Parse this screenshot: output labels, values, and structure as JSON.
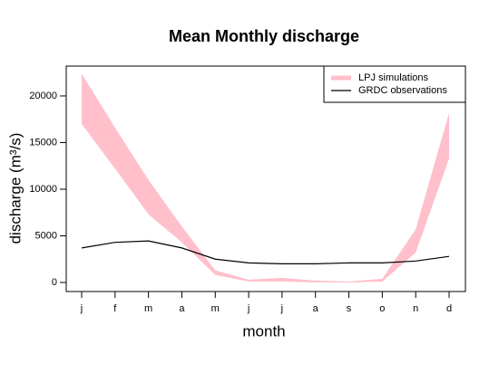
{
  "chart_data": {
    "type": "band-line",
    "title": "Mean Monthly discharge",
    "x_label": "month",
    "y_label": "discharge (m³/s)",
    "categories": [
      "j",
      "f",
      "m",
      "a",
      "m",
      "j",
      "j",
      "a",
      "s",
      "o",
      "n",
      "d"
    ],
    "series": [
      {
        "name": "LPJ simulations",
        "color": "#ffc0cb",
        "low": [
          17000,
          12200,
          7300,
          4300,
          800,
          100,
          100,
          0,
          0,
          100,
          3200,
          13300
        ],
        "high": [
          22400,
          16600,
          11000,
          6000,
          1300,
          300,
          500,
          200,
          100,
          400,
          5700,
          18200
        ]
      },
      {
        "name": "GRDC observations",
        "color": "#000000",
        "values": [
          3700,
          4300,
          4450,
          3700,
          2500,
          2100,
          2000,
          2000,
          2100,
          2100,
          2300,
          2800
        ]
      }
    ],
    "ylim": [
      -970,
      23200
    ],
    "yticks": [
      0,
      5000,
      10000,
      15000,
      20000
    ],
    "legend": "top-right"
  }
}
